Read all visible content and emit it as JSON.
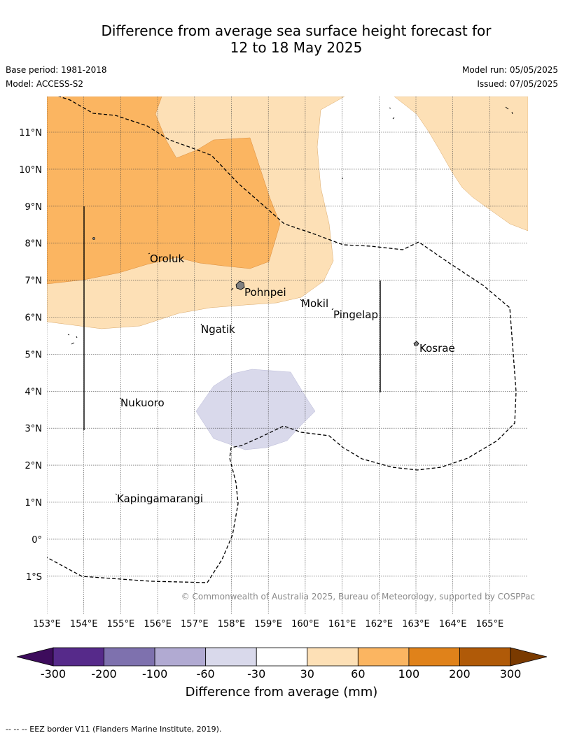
{
  "title_line1": "Difference from average sea surface height forecast for",
  "title_line2": "12 to 18 May 2025",
  "base_period": "Base period: 1981-2018",
  "model": "Model: ACCESS-S2",
  "model_run": "Model run: 05/05/2025",
  "issued": "Issued: 07/05/2025",
  "copyright": "© Commonwealth of Australia 2025, Bureau of Meteorology, supported by COSPPac",
  "footer": "--  --  -- EEZ border V11 (Flanders Marine Institute, 2019).",
  "places": {
    "oroluk": "Oroluk",
    "pohnpei": "Pohnpei",
    "mokil": "Mokil",
    "pingelap": "Pingelap",
    "ngatik": "Ngatik",
    "kosrae": "Kosrae",
    "nukuoro": "Nukuoro",
    "kapingamarangi": "Kapingamarangi"
  },
  "lat_labels": [
    "11°N",
    "10°N",
    "9°N",
    "8°N",
    "7°N",
    "6°N",
    "5°N",
    "4°N",
    "3°N",
    "2°N",
    "1°N",
    "0°",
    "1°S"
  ],
  "lon_labels": [
    "153°E",
    "154°E",
    "155°E",
    "156°E",
    "157°E",
    "158°E",
    "159°E",
    "160°E",
    "161°E",
    "162°E",
    "163°E",
    "164°E",
    "165°E"
  ],
  "colorbar": {
    "title": "Difference from average (mm)",
    "ticks": [
      "-300",
      "-200",
      "-100",
      "-60",
      "-30",
      "30",
      "60",
      "100",
      "200",
      "300"
    ],
    "colors": [
      "#3d0c5c",
      "#562a8a",
      "#7e71ae",
      "#b1aad2",
      "#d9d9eb",
      "#ffffff",
      "#fde0b6",
      "#fbb561",
      "#e0821a",
      "#b05a08",
      "#7a3a00"
    ]
  }
}
